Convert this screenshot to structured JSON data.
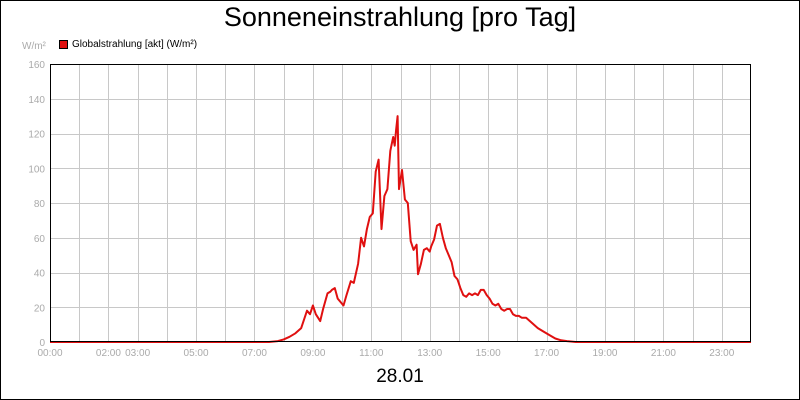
{
  "chart_data": {
    "type": "line",
    "title": "Sonneneinstrahlung [pro Tag]",
    "ylabel": "W/m²",
    "xlabel": "28.01",
    "ylim": [
      0,
      160
    ],
    "xlim": [
      0,
      24
    ],
    "y_ticks": [
      0,
      20,
      40,
      60,
      80,
      100,
      120,
      140,
      160
    ],
    "x_ticks": [
      {
        "v": 0,
        "label": "00:00"
      },
      {
        "v": 2,
        "label": "02:00"
      },
      {
        "v": 3,
        "label": "03:00"
      },
      {
        "v": 5,
        "label": "05:00"
      },
      {
        "v": 7,
        "label": "07:00"
      },
      {
        "v": 9,
        "label": "09:00"
      },
      {
        "v": 11,
        "label": "11:00"
      },
      {
        "v": 13,
        "label": "13:00"
      },
      {
        "v": 15,
        "label": "15:00"
      },
      {
        "v": 17,
        "label": "17:00"
      },
      {
        "v": 19,
        "label": "19:00"
      },
      {
        "v": 21,
        "label": "21:00"
      },
      {
        "v": 23,
        "label": "23:00"
      }
    ],
    "grid": true,
    "legend_position": "top-left",
    "series": [
      {
        "name": "Globalstrahlung [akt] (W/m²)",
        "color": "#e01010",
        "x": [
          0,
          7.5,
          7.8,
          8.0,
          8.2,
          8.4,
          8.6,
          8.8,
          8.9,
          9.0,
          9.1,
          9.25,
          9.35,
          9.5,
          9.6,
          9.65,
          9.75,
          9.85,
          10.05,
          10.15,
          10.3,
          10.4,
          10.55,
          10.65,
          10.75,
          10.85,
          10.95,
          11.05,
          11.15,
          11.25,
          11.35,
          11.45,
          11.55,
          11.65,
          11.75,
          11.8,
          11.85,
          11.9,
          11.95,
          12.05,
          12.15,
          12.25,
          12.35,
          12.45,
          12.55,
          12.6,
          12.7,
          12.8,
          12.9,
          13.0,
          13.05,
          13.15,
          13.25,
          13.35,
          13.45,
          13.55,
          13.65,
          13.75,
          13.85,
          13.95,
          14.05,
          14.15,
          14.25,
          14.35,
          14.45,
          14.55,
          14.65,
          14.75,
          14.85,
          14.95,
          15.05,
          15.15,
          15.25,
          15.35,
          15.45,
          15.55,
          15.65,
          15.75,
          15.85,
          15.95,
          16.05,
          16.15,
          16.3,
          16.5,
          16.7,
          16.9,
          17.1,
          17.3,
          17.5,
          17.7,
          18.0,
          24
        ],
        "values": [
          0,
          0,
          0.5,
          1.5,
          3,
          5,
          8,
          18,
          16,
          21,
          16,
          12,
          19,
          28,
          29,
          30,
          31,
          25,
          21,
          27,
          35,
          34,
          45,
          60,
          55,
          65,
          72,
          74,
          98,
          105,
          65,
          84,
          88,
          110,
          118,
          113,
          122,
          130,
          88,
          99,
          82,
          80,
          58,
          53,
          56,
          39,
          45,
          53,
          54,
          52,
          55,
          59,
          67,
          68,
          60,
          54,
          50,
          46,
          38,
          36,
          31,
          27,
          26,
          28,
          27,
          28,
          27,
          30,
          30,
          27,
          25,
          22,
          21,
          22,
          19,
          18,
          19,
          19,
          16,
          15,
          15,
          14,
          14,
          11,
          8,
          6,
          4,
          2,
          1,
          0.5,
          0,
          0
        ]
      }
    ]
  }
}
